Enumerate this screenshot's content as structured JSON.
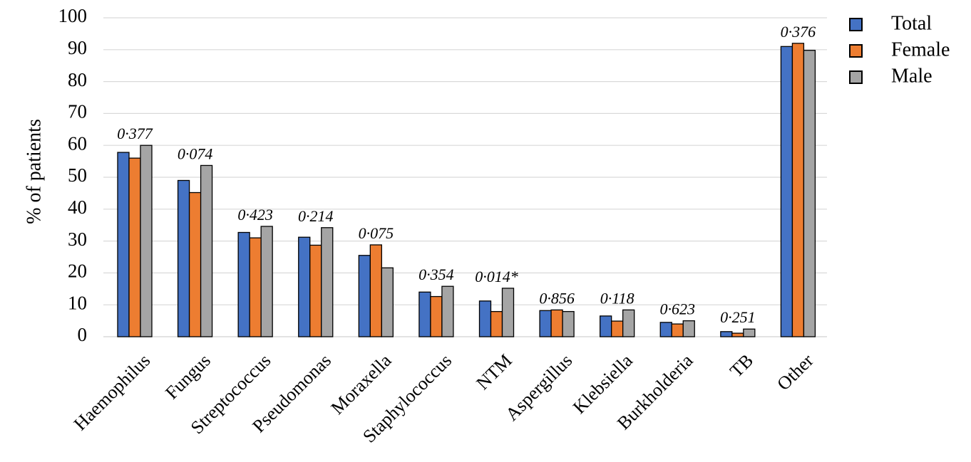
{
  "chart_data": {
    "type": "bar",
    "ylabel": "% of patients",
    "xlabel": "",
    "ylim": [
      0,
      100
    ],
    "yticks": [
      "0",
      "10",
      "20",
      "30",
      "40",
      "50",
      "60",
      "70",
      "80",
      "90",
      "100"
    ],
    "grid": true,
    "legend_position": "top-right",
    "categories": [
      "Haemophilus",
      "Fungus",
      "Streptococcus",
      "Pseudomonas",
      "Moraxella",
      "Staphylococcus",
      "NTM",
      "Aspergillus",
      "Klebsiella",
      "Burkholderia",
      "TB",
      "Other"
    ],
    "p_values": [
      "0·377",
      "0·074",
      "0·423",
      "0·214",
      "0·075",
      "0·354",
      "0·014*",
      "0·856",
      "0·118",
      "0·623",
      "0·251",
      "0·376"
    ],
    "series": [
      {
        "name": "Total",
        "color": "#4472C4",
        "values": [
          57.8,
          49.0,
          32.7,
          31.2,
          25.5,
          14.0,
          11.2,
          8.2,
          6.5,
          4.5,
          1.6,
          91.0
        ]
      },
      {
        "name": "Female",
        "color": "#ED7D31",
        "values": [
          56.0,
          45.2,
          31.0,
          28.7,
          28.8,
          12.6,
          7.9,
          8.4,
          4.9,
          4.0,
          1.1,
          92.0
        ]
      },
      {
        "name": "Male",
        "color": "#A5A5A5",
        "values": [
          60.0,
          53.7,
          34.6,
          34.2,
          21.6,
          15.8,
          15.2,
          7.9,
          8.4,
          5.0,
          2.4,
          89.8
        ]
      }
    ]
  }
}
